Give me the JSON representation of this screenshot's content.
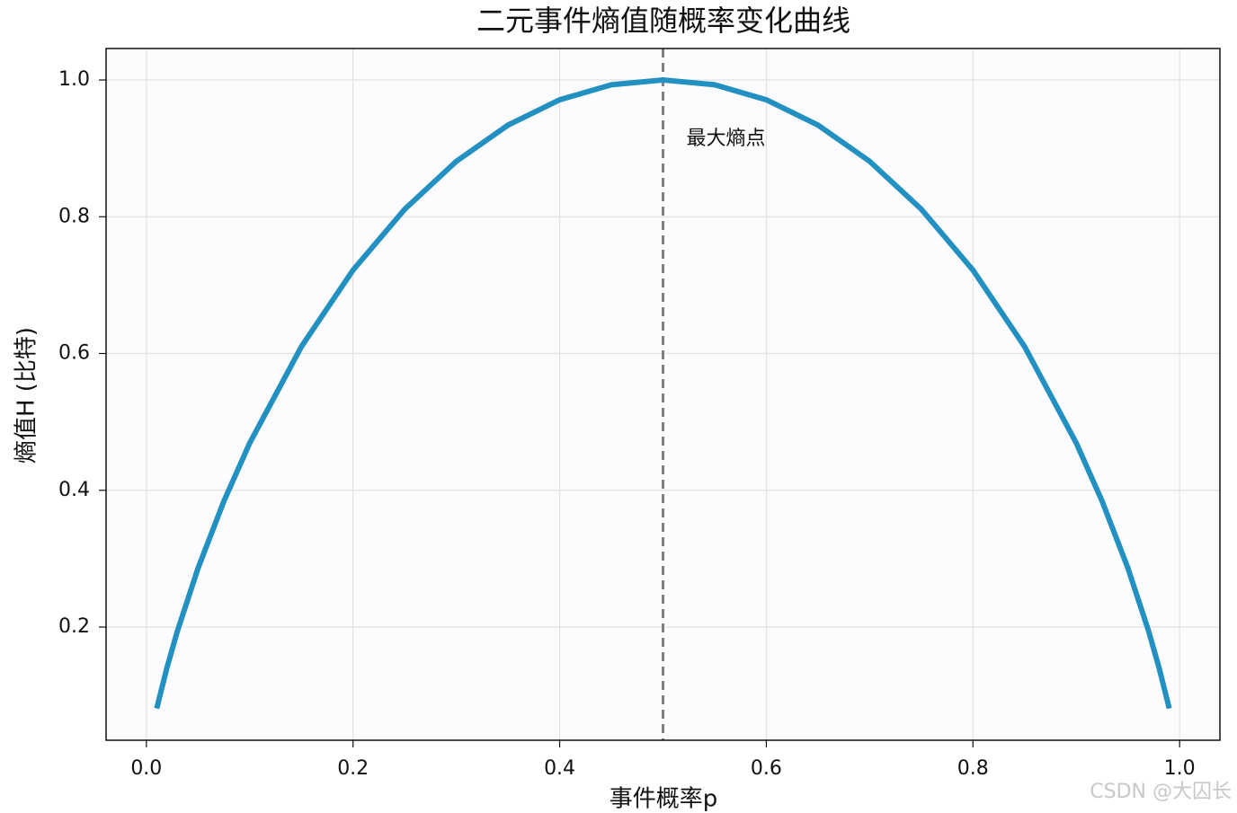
{
  "chart_data": {
    "type": "line",
    "title": "二元事件熵值随概率变化曲线",
    "xlabel": "事件概率p",
    "ylabel": "熵值H (比特)",
    "annotation": "最大熵点",
    "watermark": "CSDN @大囚长",
    "vline": 0.5,
    "vline_color": "#808080",
    "x": [
      0.01,
      0.02,
      0.03,
      0.05,
      0.075,
      0.1,
      0.15,
      0.2,
      0.25,
      0.3,
      0.35,
      0.4,
      0.45,
      0.5,
      0.55,
      0.6,
      0.65,
      0.7,
      0.75,
      0.8,
      0.85,
      0.9,
      0.925,
      0.95,
      0.97,
      0.98,
      0.99
    ],
    "series": [
      {
        "color": "#2290c0",
        "values": [
          0.081,
          0.141,
          0.194,
          0.286,
          0.384,
          0.469,
          0.61,
          0.722,
          0.811,
          0.881,
          0.934,
          0.971,
          0.993,
          1.0,
          0.993,
          0.971,
          0.934,
          0.881,
          0.811,
          0.722,
          0.61,
          0.469,
          0.384,
          0.286,
          0.194,
          0.141,
          0.081
        ]
      }
    ],
    "xlim": [
      -0.039,
      1.039
    ],
    "ylim": [
      0.0345,
      1.046
    ],
    "xticks": [
      {
        "value": 0,
        "label": "0.0"
      },
      0.2,
      0.4,
      0.6,
      0.8,
      {
        "value": 1,
        "label": "1.0"
      }
    ],
    "yticks": [
      0.2,
      0.4,
      0.6,
      0.8,
      {
        "value": 1,
        "label": "1.0"
      }
    ],
    "grid": true
  }
}
